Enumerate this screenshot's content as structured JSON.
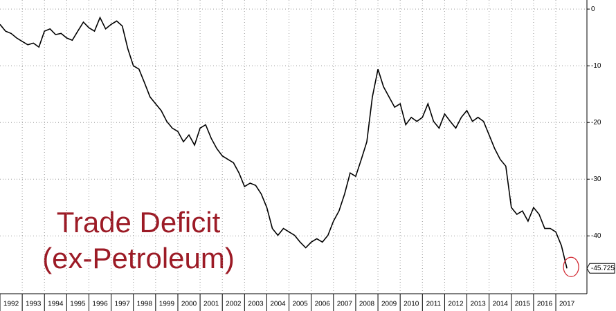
{
  "chart_data": {
    "type": "line",
    "annotation": [
      "Trade Deficit",
      "(ex-Petroleum)"
    ],
    "x": [
      1992,
      1992.25,
      1992.5,
      1992.75,
      1993,
      1993.25,
      1993.5,
      1993.75,
      1994,
      1994.25,
      1994.5,
      1994.75,
      1995,
      1995.25,
      1995.5,
      1995.75,
      1996,
      1996.25,
      1996.5,
      1996.75,
      1997,
      1997.25,
      1997.5,
      1997.75,
      1998,
      1998.25,
      1998.5,
      1998.75,
      1999,
      1999.25,
      1999.5,
      1999.75,
      2000,
      2000.25,
      2000.5,
      2000.75,
      2001,
      2001.25,
      2001.5,
      2001.75,
      2002,
      2002.25,
      2002.5,
      2002.75,
      2003,
      2003.25,
      2003.5,
      2003.75,
      2004,
      2004.25,
      2004.5,
      2004.75,
      2005,
      2005.25,
      2005.5,
      2005.75,
      2006,
      2006.25,
      2006.5,
      2006.75,
      2007,
      2007.25,
      2007.5,
      2007.75,
      2008,
      2008.25,
      2008.5,
      2008.75,
      2009,
      2009.25,
      2009.5,
      2009.75,
      2010,
      2010.25,
      2010.5,
      2010.75,
      2011,
      2011.25,
      2011.5,
      2011.75,
      2012,
      2012.25,
      2012.5,
      2012.75,
      2013,
      2013.25,
      2013.5,
      2013.75,
      2014,
      2014.25,
      2014.5,
      2014.75,
      2015,
      2015.25,
      2015.5,
      2015.75,
      2016,
      2016.25,
      2016.5,
      2016.75,
      2017,
      2017.25,
      2017.5
    ],
    "values": [
      -2.7,
      -3.9,
      -4.3,
      -5.1,
      -5.7,
      -6.3,
      -6,
      -6.7,
      -3.9,
      -3.5,
      -4.5,
      -4.3,
      -5.1,
      -5.5,
      -3.9,
      -2.3,
      -3.3,
      -3.9,
      -1.5,
      -3.5,
      -2.7,
      -2.1,
      -3,
      -7,
      -10,
      -10.6,
      -13,
      -15.5,
      -16.7,
      -17.9,
      -19.8,
      -21,
      -21.6,
      -23.4,
      -22.2,
      -24,
      -21,
      -20.4,
      -22.8,
      -24.6,
      -25.9,
      -26.5,
      -27.1,
      -28.9,
      -31.3,
      -30.7,
      -31.1,
      -32.6,
      -35,
      -38.7,
      -39.9,
      -38.7,
      -39.3,
      -39.9,
      -41.1,
      -42.1,
      -41.1,
      -40.5,
      -41.1,
      -39.9,
      -37.4,
      -35.6,
      -32.6,
      -28.9,
      -29.5,
      -26.5,
      -23.4,
      -15.5,
      -10.6,
      -13.7,
      -15.5,
      -17.3,
      -16.7,
      -20.4,
      -19.1,
      -19.8,
      -19.1,
      -16.7,
      -19.8,
      -21,
      -18.5,
      -19.8,
      -21,
      -19.1,
      -17.9,
      -19.8,
      -19.1,
      -19.8,
      -22.2,
      -24.6,
      -26.5,
      -27.7,
      -35,
      -36.2,
      -35.6,
      -37.4,
      -35,
      -36.2,
      -38.7,
      -38.7,
      -39.3,
      -41.7,
      -45.725
    ],
    "color": "#000000",
    "xlim": [
      1992,
      2018.4
    ],
    "xticks": [
      1992,
      1993,
      1994,
      1995,
      1996,
      1997,
      1998,
      1999,
      2000,
      2001,
      2002,
      2003,
      2004,
      2005,
      2006,
      2007,
      2008,
      2009,
      2010,
      2011,
      2012,
      2013,
      2014,
      2015,
      2016,
      2017
    ],
    "ylim": [
      -50.2,
      1.6
    ],
    "yticks": [
      0,
      -10,
      -20,
      -30,
      -40
    ],
    "grid": true
  }
}
